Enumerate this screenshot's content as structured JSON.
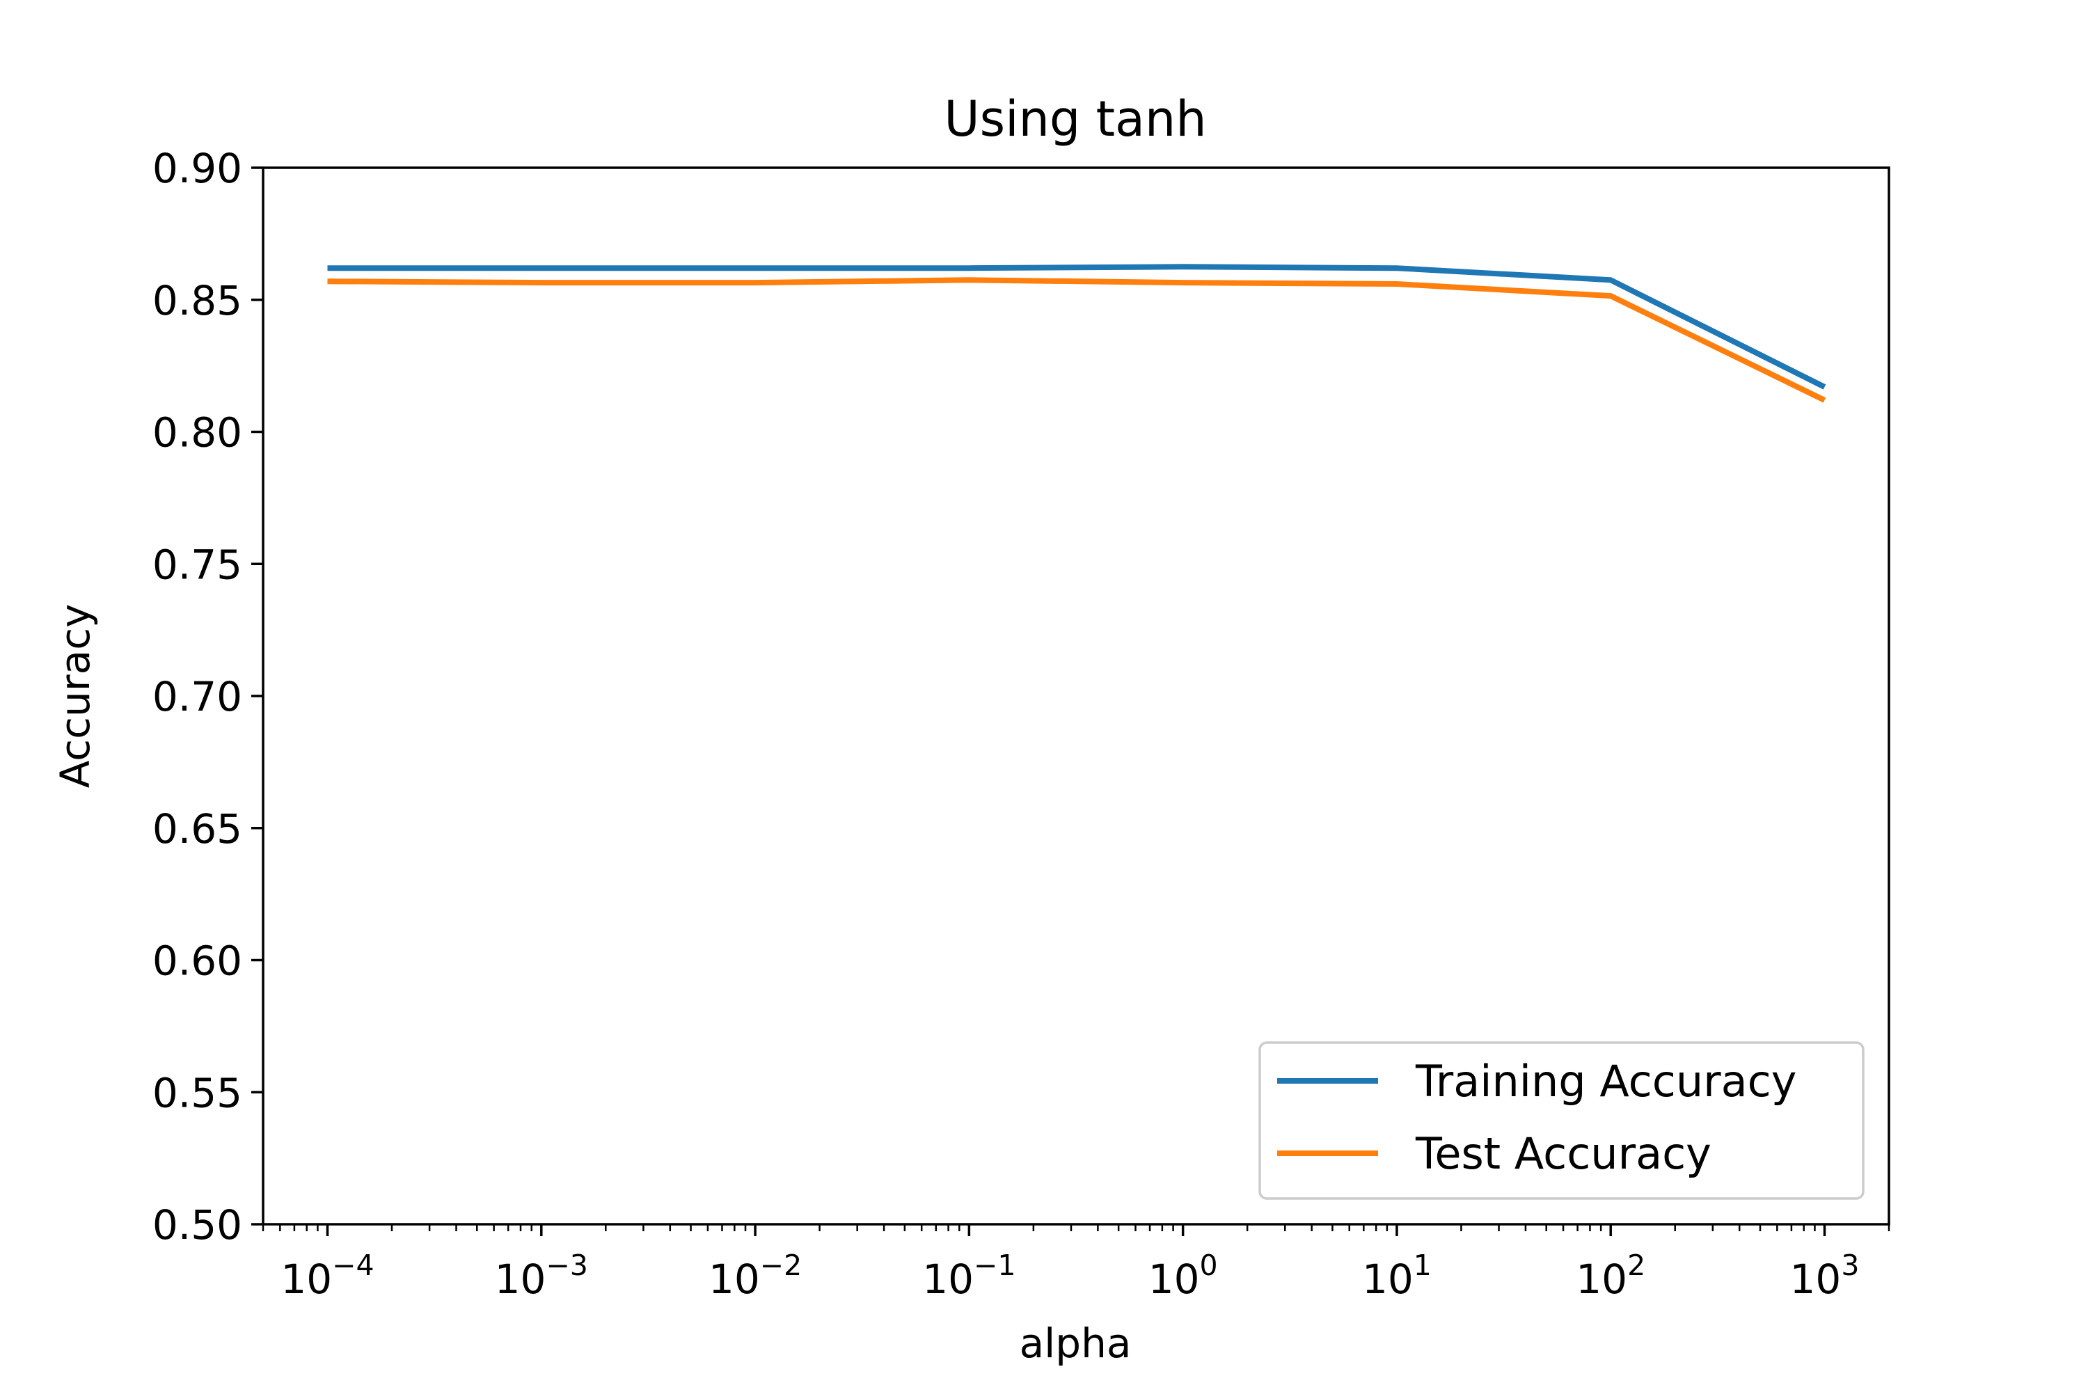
{
  "chart_data": {
    "type": "line",
    "title": "Using tanh",
    "xlabel": "alpha",
    "ylabel": "Accuracy",
    "x_scale": "log",
    "x": [
      0.0001,
      0.001,
      0.01,
      0.1,
      1,
      10,
      100,
      1000
    ],
    "x_tick_values": [
      0.0001,
      0.001,
      0.01,
      0.1,
      1,
      10,
      100,
      1000
    ],
    "x_tick_labels": [
      {
        "base": "10",
        "exp": "−4"
      },
      {
        "base": "10",
        "exp": "−3"
      },
      {
        "base": "10",
        "exp": "−2"
      },
      {
        "base": "10",
        "exp": "−1"
      },
      {
        "base": "10",
        "exp": "0"
      },
      {
        "base": "10",
        "exp": "1"
      },
      {
        "base": "10",
        "exp": "2"
      },
      {
        "base": "10",
        "exp": "3"
      }
    ],
    "y_ticks": [
      0.5,
      0.55,
      0.6,
      0.65,
      0.7,
      0.75,
      0.8,
      0.85,
      0.9
    ],
    "y_tick_labels": [
      "0.50",
      "0.55",
      "0.60",
      "0.65",
      "0.70",
      "0.75",
      "0.80",
      "0.85",
      "0.90"
    ],
    "xlim": [
      5e-05,
      2000
    ],
    "ylim": [
      0.5,
      0.9
    ],
    "grid": false,
    "legend_position": "lower-right",
    "series": [
      {
        "name": "Training Accuracy",
        "color": "#1f77b4",
        "values": [
          0.862,
          0.862,
          0.862,
          0.862,
          0.8625,
          0.862,
          0.8575,
          0.817
        ]
      },
      {
        "name": "Test Accuracy",
        "color": "#ff7f0e",
        "values": [
          0.857,
          0.8565,
          0.8565,
          0.8575,
          0.8565,
          0.856,
          0.8515,
          0.812
        ]
      }
    ]
  }
}
